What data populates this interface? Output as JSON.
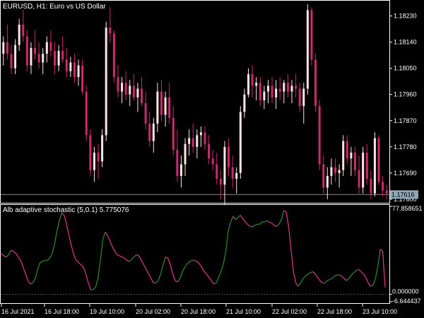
{
  "window": {
    "symbol_label": "EURUSD, H1:  Euro vs US Dollar"
  },
  "colors": {
    "background": "#000000",
    "panel_bg": "#1a1a1a",
    "grid": "#ffffff",
    "bull": "#ffe4e4",
    "bear": "#cc2a6e",
    "osc_up": "#2e8b2e",
    "osc_down": "#e0378c",
    "price_line": "#8a8a8a",
    "price_box": "#8fa8b8"
  },
  "price_axis": {
    "ticks": [
      "1.18230",
      "1.18140",
      "1.18050",
      "1.17960",
      "1.17870",
      "1.17780",
      "1.17690",
      "1.17600"
    ],
    "current_price": "1.17616"
  },
  "indicator": {
    "label": "Alb adaptive stochastic (5,0.1) 5.775076",
    "ticks": [
      "77.858651",
      "0.000000",
      "-6.644437"
    ]
  },
  "time_axis": {
    "ticks": [
      "16 Jul 2021",
      "16 Jul 18:00",
      "19 Jul 10:00",
      "20 Jul 02:00",
      "20 Jul 18:00",
      "21 Jul 10:00",
      "22 Jul 02:00",
      "22 Jul 18:00",
      "23 Jul 10:00"
    ]
  },
  "chart_data": [
    {
      "type": "candlestick",
      "title": "EURUSD, H1:  Euro vs US Dollar",
      "ylim": [
        1.1759,
        1.1828
      ],
      "candles": [
        [
          1.181,
          1.1816,
          1.1806,
          1.1814
        ],
        [
          1.1814,
          1.182,
          1.1808,
          1.181
        ],
        [
          1.181,
          1.1813,
          1.1803,
          1.1805
        ],
        [
          1.1805,
          1.1815,
          1.1803,
          1.1813
        ],
        [
          1.1813,
          1.1822,
          1.1811,
          1.182
        ],
        [
          1.182,
          1.1825,
          1.1814,
          1.1816
        ],
        [
          1.1816,
          1.1818,
          1.1804,
          1.1806
        ],
        [
          1.1806,
          1.1814,
          1.1803,
          1.1812
        ],
        [
          1.1812,
          1.1818,
          1.1808,
          1.181
        ],
        [
          1.181,
          1.1814,
          1.1805,
          1.1807
        ],
        [
          1.1807,
          1.1812,
          1.1803,
          1.181
        ],
        [
          1.181,
          1.1816,
          1.1807,
          1.1814
        ],
        [
          1.1814,
          1.1818,
          1.1809,
          1.1811
        ],
        [
          1.1811,
          1.1814,
          1.1803,
          1.1806
        ],
        [
          1.1806,
          1.1813,
          1.1804,
          1.1811
        ],
        [
          1.1811,
          1.1816,
          1.1807,
          1.1808
        ],
        [
          1.1808,
          1.1812,
          1.1802,
          1.1804
        ],
        [
          1.1804,
          1.1809,
          1.1802,
          1.1807
        ],
        [
          1.1807,
          1.181,
          1.18,
          1.1802
        ],
        [
          1.1802,
          1.1808,
          1.1799,
          1.1806
        ],
        [
          1.1806,
          1.1808,
          1.1796,
          1.1797
        ],
        [
          1.1797,
          1.1799,
          1.178,
          1.1782
        ],
        [
          1.1782,
          1.1784,
          1.1768,
          1.177
        ],
        [
          1.177,
          1.1778,
          1.1766,
          1.1776
        ],
        [
          1.1776,
          1.1779,
          1.1767,
          1.1773
        ],
        [
          1.1773,
          1.1784,
          1.1771,
          1.1782
        ],
        [
          1.1782,
          1.1821,
          1.178,
          1.1819
        ],
        [
          1.1819,
          1.1826,
          1.1814,
          1.1817
        ],
        [
          1.1817,
          1.1818,
          1.18,
          1.1802
        ],
        [
          1.1802,
          1.1806,
          1.1795,
          1.1797
        ],
        [
          1.1797,
          1.1802,
          1.1793,
          1.18
        ],
        [
          1.18,
          1.1804,
          1.1794,
          1.1796
        ],
        [
          1.1796,
          1.1801,
          1.1792,
          1.1799
        ],
        [
          1.1799,
          1.1803,
          1.1794,
          1.1795
        ],
        [
          1.1795,
          1.18,
          1.179,
          1.1798
        ],
        [
          1.1798,
          1.1802,
          1.1792,
          1.1793
        ],
        [
          1.1793,
          1.1797,
          1.1784,
          1.1786
        ],
        [
          1.1786,
          1.179,
          1.1778,
          1.178
        ],
        [
          1.178,
          1.1788,
          1.1776,
          1.1786
        ],
        [
          1.1786,
          1.18,
          1.1783,
          1.1797
        ],
        [
          1.1797,
          1.1801,
          1.1787,
          1.1789
        ],
        [
          1.1789,
          1.1797,
          1.1785,
          1.1795
        ],
        [
          1.1795,
          1.18,
          1.1786,
          1.1788
        ],
        [
          1.1788,
          1.1792,
          1.1775,
          1.1777
        ],
        [
          1.1777,
          1.1784,
          1.1766,
          1.1768
        ],
        [
          1.1768,
          1.1775,
          1.1764,
          1.1772
        ],
        [
          1.1772,
          1.1781,
          1.1768,
          1.1779
        ],
        [
          1.1779,
          1.1784,
          1.1775,
          1.1781
        ],
        [
          1.1781,
          1.1786,
          1.1776,
          1.1778
        ],
        [
          1.1778,
          1.1784,
          1.1774,
          1.1782
        ],
        [
          1.1782,
          1.1785,
          1.1778,
          1.1783
        ],
        [
          1.1783,
          1.1785,
          1.1777,
          1.1779
        ],
        [
          1.1779,
          1.1782,
          1.1772,
          1.1774
        ],
        [
          1.1774,
          1.1777,
          1.177,
          1.1772
        ],
        [
          1.1772,
          1.1776,
          1.1765,
          1.1767
        ],
        [
          1.1767,
          1.177,
          1.176,
          1.1765
        ],
        [
          1.1765,
          1.178,
          1.1758,
          1.1778
        ],
        [
          1.1778,
          1.1781,
          1.1768,
          1.1771
        ],
        [
          1.1771,
          1.1775,
          1.1764,
          1.1767
        ],
        [
          1.1767,
          1.1771,
          1.1762,
          1.1769
        ],
        [
          1.1769,
          1.1792,
          1.1767,
          1.179
        ],
        [
          1.179,
          1.1798,
          1.1788,
          1.1796
        ],
        [
          1.1796,
          1.1805,
          1.1795,
          1.1803
        ],
        [
          1.1803,
          1.1806,
          1.1795,
          1.1799
        ],
        [
          1.1799,
          1.1802,
          1.1794,
          1.18
        ],
        [
          1.18,
          1.1802,
          1.1792,
          1.1794
        ],
        [
          1.1794,
          1.1799,
          1.1791,
          1.1797
        ],
        [
          1.1797,
          1.1801,
          1.1793,
          1.1799
        ],
        [
          1.1799,
          1.1802,
          1.1793,
          1.1795
        ],
        [
          1.1795,
          1.1801,
          1.1791,
          1.1798
        ],
        [
          1.1798,
          1.1802,
          1.1794,
          1.1797
        ],
        [
          1.1797,
          1.1801,
          1.1793,
          1.18
        ],
        [
          1.18,
          1.1803,
          1.1795,
          1.1797
        ],
        [
          1.1797,
          1.1801,
          1.1793,
          1.1799
        ],
        [
          1.1799,
          1.1803,
          1.1795,
          1.1798
        ],
        [
          1.1798,
          1.18,
          1.179,
          1.1792
        ],
        [
          1.1792,
          1.18,
          1.1786,
          1.1798
        ],
        [
          1.1798,
          1.1827,
          1.1796,
          1.1825
        ],
        [
          1.1825,
          1.1826,
          1.1806,
          1.1808
        ],
        [
          1.1808,
          1.181,
          1.179,
          1.1792
        ],
        [
          1.1792,
          1.1794,
          1.177,
          1.1772
        ],
        [
          1.1772,
          1.1775,
          1.1762,
          1.1764
        ],
        [
          1.1764,
          1.1771,
          1.176,
          1.1768
        ],
        [
          1.1768,
          1.1774,
          1.1765,
          1.1771
        ],
        [
          1.1771,
          1.1774,
          1.1766,
          1.1769
        ],
        [
          1.1769,
          1.1772,
          1.1764,
          1.177
        ],
        [
          1.177,
          1.1782,
          1.1768,
          1.178
        ],
        [
          1.178,
          1.1782,
          1.1772,
          1.1774
        ],
        [
          1.1774,
          1.1778,
          1.1768,
          1.1776
        ],
        [
          1.1776,
          1.1778,
          1.1768,
          1.177
        ],
        [
          1.177,
          1.1775,
          1.1762,
          1.1764
        ],
        [
          1.1764,
          1.1778,
          1.1762,
          1.1776
        ],
        [
          1.1776,
          1.1779,
          1.1765,
          1.1767
        ],
        [
          1.1767,
          1.177,
          1.176,
          1.1762
        ],
        [
          1.1762,
          1.1783,
          1.1761,
          1.1781
        ],
        [
          1.1781,
          1.1782,
          1.1765,
          1.1766
        ],
        [
          1.1766,
          1.1768,
          1.1761,
          1.1763
        ],
        [
          1.1763,
          1.1765,
          1.176,
          1.1762
        ]
      ]
    },
    {
      "type": "line",
      "title": "Alb adaptive stochastic (5,0.1) 5.775076",
      "ylim": [
        -6.644437,
        77.858651
      ],
      "values": [
        36,
        34,
        33,
        35,
        39,
        38,
        36,
        33,
        30,
        24,
        18,
        12,
        9,
        10,
        14,
        22,
        28,
        29,
        30,
        30,
        32,
        36,
        44,
        56,
        65,
        72,
        70,
        62,
        52,
        43,
        35,
        30,
        28,
        26,
        24,
        18,
        10,
        4,
        4,
        6,
        14,
        30,
        48,
        55,
        52,
        47,
        42,
        38,
        35,
        34,
        33,
        32,
        30,
        29,
        31,
        33,
        35,
        34,
        30,
        26,
        22,
        18,
        14,
        10,
        10,
        12,
        18,
        26,
        33,
        32,
        26,
        18,
        12,
        11,
        14,
        20,
        24,
        27,
        29,
        30,
        30,
        29,
        27,
        24,
        20,
        18,
        15,
        12,
        9,
        10,
        15,
        20,
        27,
        38,
        56,
        64,
        69,
        66,
        68,
        70,
        67,
        64,
        62,
        60,
        60,
        61,
        62,
        62,
        64,
        64,
        65,
        64,
        63,
        61,
        60,
        62,
        66,
        74,
        73,
        60,
        40,
        20,
        10,
        7,
        10,
        14,
        16,
        18,
        19,
        20,
        18,
        15,
        12,
        10,
        10,
        12,
        13,
        14,
        16,
        17,
        17,
        16,
        14,
        12,
        14,
        17,
        19,
        21,
        22,
        20,
        18,
        15,
        10,
        7,
        8,
        14,
        25,
        40,
        38,
        6
      ]
    }
  ]
}
